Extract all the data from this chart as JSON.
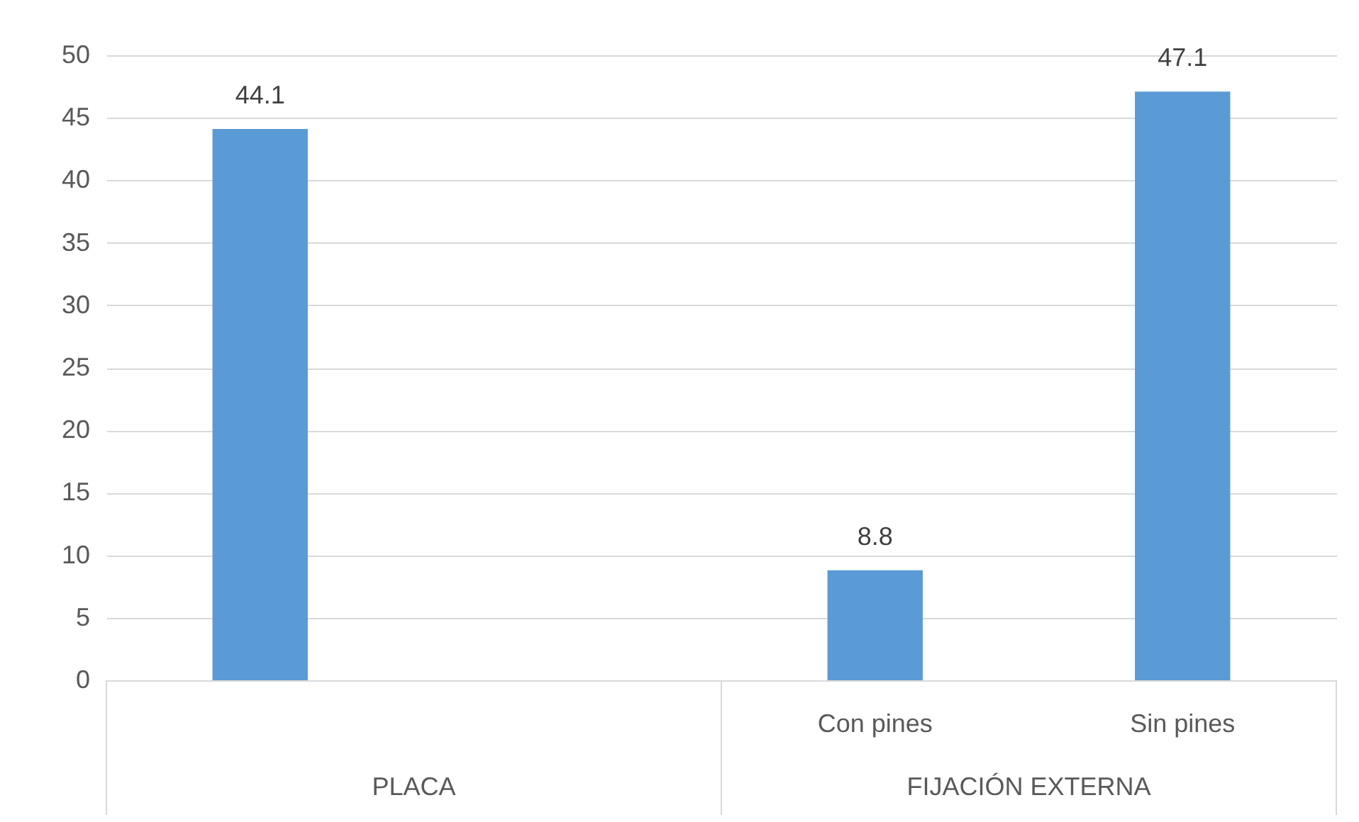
{
  "chart_data": {
    "type": "bar",
    "categories": [
      null,
      null,
      "Con pines",
      "Sin pines"
    ],
    "values": [
      44.1,
      null,
      8.8,
      47.1
    ],
    "color": "#5b9bd5",
    "ylim": [
      0,
      50
    ],
    "yticks": [
      0,
      5,
      10,
      15,
      20,
      25,
      30,
      35,
      40,
      45,
      50
    ],
    "grid": "y",
    "data_labels": true,
    "annotations": [
      "PLACA",
      "FIJACIÓN EXTERNA"
    ]
  }
}
